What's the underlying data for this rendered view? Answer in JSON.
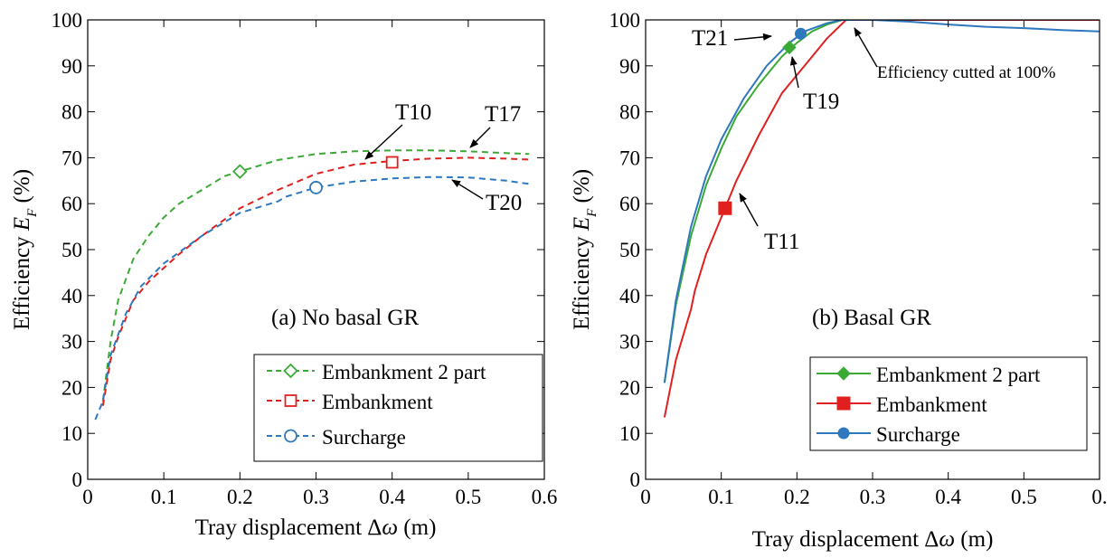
{
  "chart_data": [
    {
      "type": "line",
      "panel_label": "(a) No basal GR",
      "xlabel": "Tray displacement Δω (m)",
      "ylabel": "Efficiency E_F (%)",
      "xlim": [
        0,
        0.6
      ],
      "ylim": [
        0,
        100
      ],
      "x_ticks": [
        "0",
        "0.1",
        "0.2",
        "0.3",
        "0.4",
        "0.5",
        "0.6"
      ],
      "y_ticks": [
        "0",
        "10",
        "20",
        "30",
        "40",
        "50",
        "60",
        "70",
        "80",
        "90",
        "100"
      ],
      "grid": false,
      "line_style": "dashed",
      "legend_position": "bottom-right",
      "series": [
        {
          "name": "Embankment 2 part",
          "color": "#3aaa35",
          "marker": "open-diamond",
          "marker_point": [
            0.2,
            67
          ],
          "x": [
            0.02,
            0.03,
            0.04,
            0.06,
            0.08,
            0.1,
            0.12,
            0.15,
            0.18,
            0.2,
            0.25,
            0.3,
            0.35,
            0.4,
            0.45,
            0.5,
            0.55,
            0.58
          ],
          "y": [
            17,
            30,
            39,
            48,
            53,
            57,
            60,
            63,
            66,
            67,
            69.5,
            70.8,
            71.4,
            71.6,
            71.6,
            71.4,
            71,
            70.8
          ]
        },
        {
          "name": "Embankment",
          "color": "#e0201f",
          "marker": "open-square",
          "marker_point": [
            0.4,
            69
          ],
          "x": [
            0.02,
            0.03,
            0.04,
            0.05,
            0.06,
            0.08,
            0.1,
            0.12,
            0.15,
            0.2,
            0.25,
            0.3,
            0.35,
            0.4,
            0.45,
            0.5,
            0.55,
            0.58
          ],
          "y": [
            16,
            26,
            31,
            35,
            39,
            43,
            46,
            49,
            53,
            59,
            63,
            66.5,
            68.5,
            69.3,
            69.8,
            70,
            69.8,
            69.6
          ]
        },
        {
          "name": "Surcharge",
          "color": "#2e78bd",
          "marker": "open-circle",
          "marker_point": [
            0.3,
            63.5
          ],
          "x": [
            0.01,
            0.02,
            0.03,
            0.05,
            0.07,
            0.1,
            0.15,
            0.2,
            0.25,
            0.26,
            0.3,
            0.35,
            0.4,
            0.45,
            0.5,
            0.55,
            0.58
          ],
          "y": [
            13,
            17,
            27,
            36,
            42,
            47,
            53,
            58,
            60.5,
            61.5,
            63.5,
            64.8,
            65.5,
            65.8,
            65.7,
            65,
            64.3
          ]
        }
      ],
      "annotations": [
        {
          "text": "T10",
          "x": 0.37,
          "y": 68.5
        },
        {
          "text": "T17",
          "x": 0.5,
          "y": 71.5
        },
        {
          "text": "T20",
          "x": 0.5,
          "y": 65.5
        }
      ]
    },
    {
      "type": "line",
      "panel_label": "(b) Basal GR",
      "xlabel": "Tray displacement Δω (m)",
      "ylabel": "Efficiency E_F (%)",
      "xlim": [
        0,
        0.6
      ],
      "ylim": [
        0,
        100
      ],
      "x_ticks": [
        "0",
        "0.1",
        "0.2",
        "0.3",
        "0.4",
        "0.5",
        "0."
      ],
      "y_ticks": [
        "0",
        "10",
        "20",
        "30",
        "40",
        "50",
        "60",
        "70",
        "80",
        "90",
        "100"
      ],
      "grid": false,
      "line_style": "solid",
      "legend_position": "bottom-right",
      "series": [
        {
          "name": "Embankment 2 part",
          "color": "#3aaa35",
          "marker": "filled-diamond",
          "marker_point": [
            0.19,
            94
          ],
          "x": [
            0.025,
            0.04,
            0.06,
            0.08,
            0.1,
            0.12,
            0.15,
            0.18,
            0.2,
            0.22,
            0.24,
            0.26,
            0.3,
            0.4,
            0.5,
            0.6
          ],
          "y": [
            21,
            38,
            53,
            64,
            72,
            79,
            86,
            92,
            95,
            97.5,
            99,
            100,
            100,
            100,
            100,
            100
          ]
        },
        {
          "name": "Embankment",
          "color": "#e0201f",
          "marker": "filled-square",
          "marker_point": [
            0.105,
            59
          ],
          "x": [
            0.025,
            0.04,
            0.06,
            0.065,
            0.08,
            0.1,
            0.12,
            0.15,
            0.18,
            0.2,
            0.22,
            0.24,
            0.265,
            0.3,
            0.4,
            0.5,
            0.6
          ],
          "y": [
            13.5,
            26,
            37,
            41,
            49,
            57,
            65,
            75,
            84,
            88,
            92,
            96,
            100,
            100,
            100,
            100,
            100
          ]
        },
        {
          "name": "Surcharge",
          "color": "#2e78bd",
          "marker": "filled-circle",
          "marker_point": [
            0.205,
            97
          ],
          "x": [
            0.025,
            0.04,
            0.06,
            0.08,
            0.1,
            0.13,
            0.16,
            0.19,
            0.21,
            0.24,
            0.26,
            0.3,
            0.35,
            0.4,
            0.45,
            0.5,
            0.55,
            0.6
          ],
          "y": [
            21,
            39,
            55,
            66,
            74,
            83,
            90,
            95,
            97.5,
            99.3,
            100,
            100,
            99.6,
            99,
            98.5,
            98.2,
            97.8,
            97.5
          ]
        }
      ],
      "annotations": [
        {
          "text": "T21",
          "x": 0.205,
          "y": 97
        },
        {
          "text": "T19",
          "x": 0.19,
          "y": 94
        },
        {
          "text": "T11",
          "x": 0.11,
          "y": 62
        },
        {
          "text": "Efficiency cutted at 100%",
          "x": 0.265,
          "y": 100
        }
      ]
    }
  ]
}
